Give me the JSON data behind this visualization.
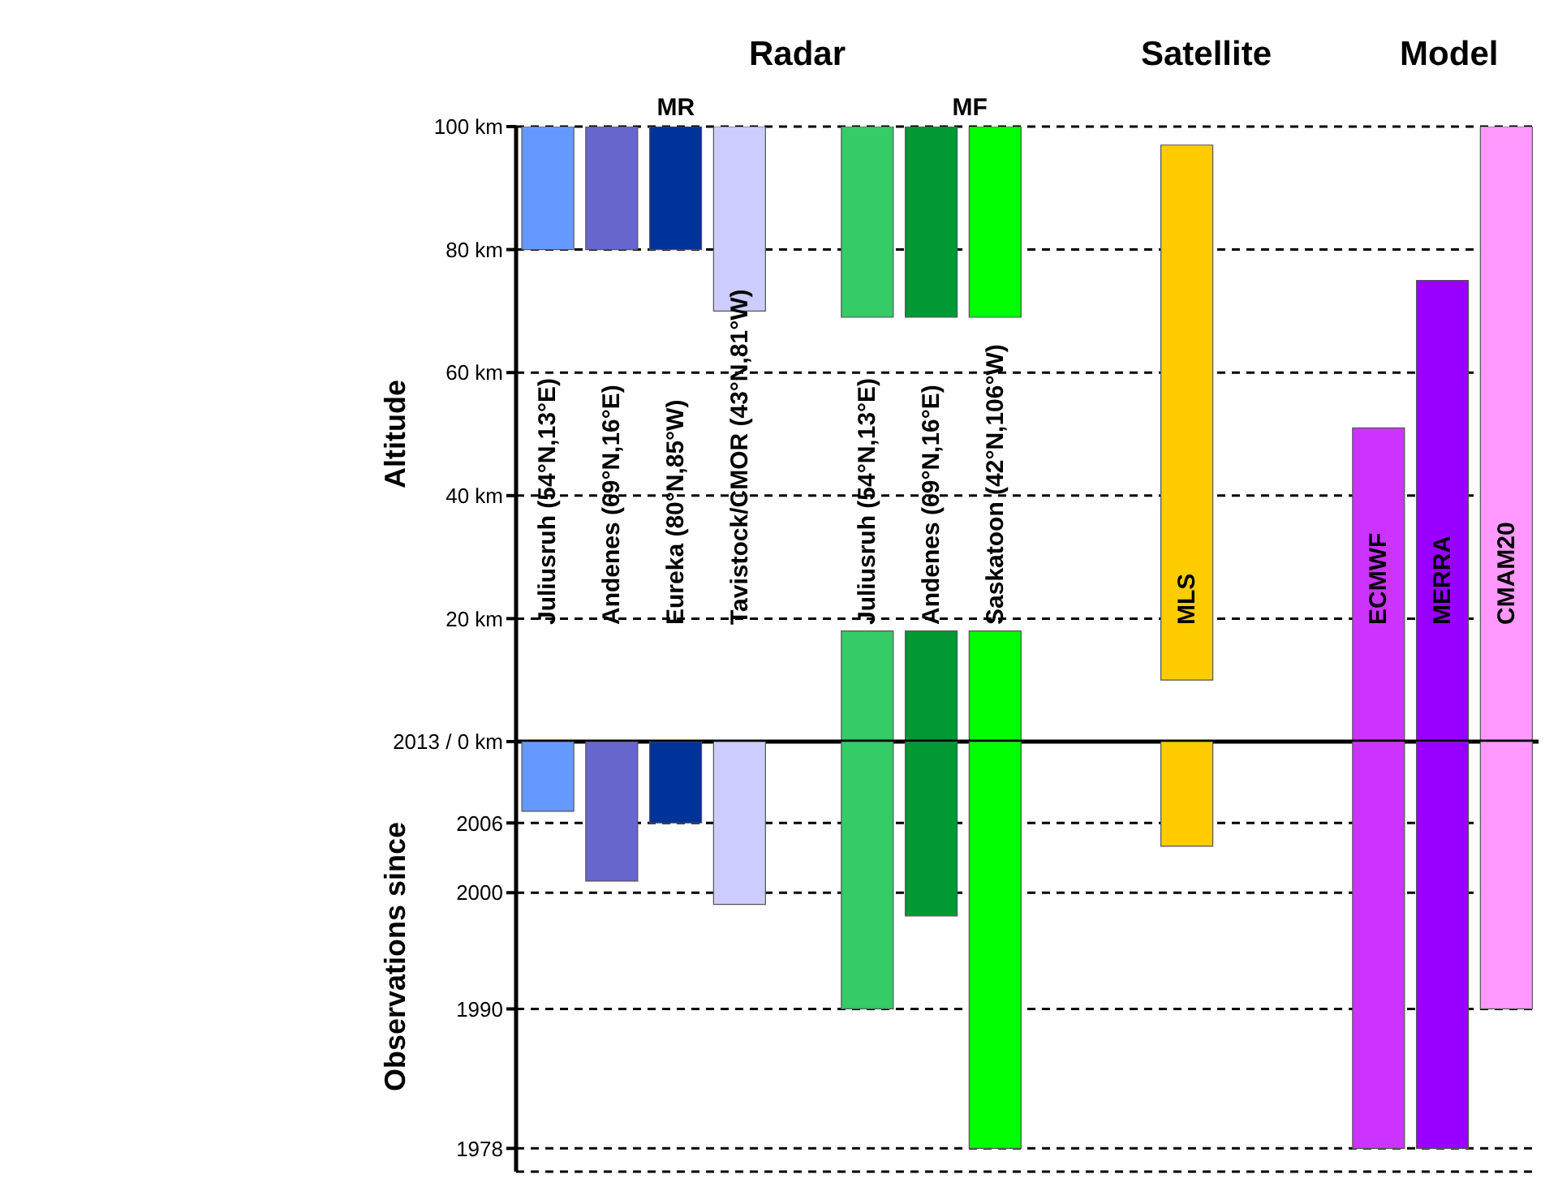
{
  "chart_data": [
    {
      "type": "bar",
      "ylabel": "Altitude",
      "annotations": [
        "Radar",
        "Satellite",
        "Model",
        "MR",
        "MF"
      ],
      "categories": [
        "Juliusruh (54°N,13°E)",
        "Andenes (69°N,16°E)",
        "Eureka (80°N,85°W)",
        "Tavistock/CMOR (43°N,81°W)",
        null,
        "Juliusruh (54°N,13°E)",
        "Andenes (69°N,16°E)",
        "Saskatoon (42°N,106°W)",
        null,
        null,
        "MLS",
        null,
        null,
        "ECMWF",
        "MERRA",
        "CMAM20"
      ],
      "ylim": [
        0,
        100
      ],
      "yticks": [
        {
          "value": 0,
          "label": "2013 / 0 km"
        },
        {
          "value": 20,
          "label": "20 km"
        },
        {
          "value": 40,
          "label": "40 km"
        },
        {
          "value": 60,
          "label": "60 km"
        },
        {
          "value": 80,
          "label": "80 km"
        },
        {
          "value": 100,
          "label": "100 km"
        }
      ],
      "grid": "y",
      "series": [
        {
          "colors": [
            "#6699ff",
            "#6666cc",
            "#003399",
            "#ccccff",
            null,
            "#33cc66",
            "#009933",
            "#00ff00",
            null,
            null,
            "#ffcc00",
            null,
            null,
            "#cc33ff",
            "#9900ff",
            "#ff99ff"
          ],
          "base": [
            80,
            80,
            80,
            70,
            null,
            69,
            69,
            69,
            null,
            null,
            10,
            null,
            null,
            0,
            0,
            0
          ],
          "values": [
            20,
            20,
            20,
            30,
            null,
            31,
            31,
            31,
            null,
            null,
            87,
            null,
            null,
            51,
            75,
            100
          ]
        },
        {
          "colors": [
            null,
            null,
            null,
            null,
            null,
            "#33cc66",
            "#009933",
            "#00ff00",
            null,
            null,
            null,
            null,
            null,
            null,
            null,
            null
          ],
          "base": [
            null,
            null,
            null,
            null,
            null,
            0,
            0,
            0,
            null,
            null,
            null,
            null,
            null,
            null,
            null,
            null
          ],
          "values": [
            null,
            null,
            null,
            null,
            null,
            18,
            18,
            18,
            null,
            null,
            null,
            null,
            null,
            null,
            null,
            null
          ]
        }
      ]
    },
    {
      "type": "bar",
      "ylabel": "Observations since",
      "categories": [
        null,
        null,
        null,
        null,
        null,
        null,
        null,
        null,
        null,
        null,
        null,
        null,
        null,
        null,
        null,
        null
      ],
      "ylim": [
        1976,
        2013
      ],
      "yticks": [
        1978,
        1990,
        2000,
        2006
      ],
      "grid": "y",
      "tick_labels": "y",
      "series": [
        {
          "colors": [
            "#6699ff",
            "#6666cc",
            "#003399",
            "#ccccff",
            null,
            "#33cc66",
            "#009933",
            "#00ff00",
            null,
            null,
            "#ffcc00",
            null,
            null,
            "#cc33ff",
            "#9900ff",
            "#ff99ff"
          ],
          "base": [
            2007,
            2001,
            2006,
            1999,
            null,
            1990,
            1998,
            1978,
            null,
            null,
            2004,
            null,
            null,
            1978,
            1978,
            1990
          ],
          "values": [
            6,
            12,
            7,
            14,
            null,
            23,
            15,
            35,
            null,
            null,
            9,
            null,
            null,
            35,
            35,
            23
          ]
        }
      ]
    }
  ]
}
